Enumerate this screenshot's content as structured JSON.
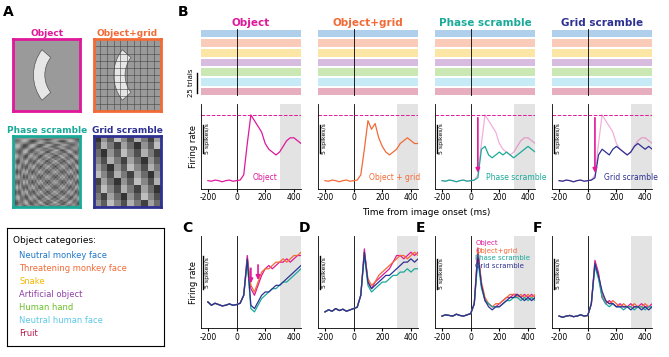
{
  "panel_labels": [
    "A",
    "B",
    "C",
    "D",
    "E",
    "F"
  ],
  "images": [
    {
      "title": "Object",
      "color": "#e0189a"
    },
    {
      "title": "Object+grid",
      "color": "#f26a36"
    },
    {
      "title": "Phase scramble",
      "color": "#1aaa9a"
    },
    {
      "title": "Grid scramble",
      "color": "#2e3192"
    }
  ],
  "legend_box": {
    "title": "Object categories:",
    "items": [
      {
        "name": "Neutral monkey face",
        "color": "#1f77c8"
      },
      {
        "name": "Threatening monkey face",
        "color": "#f26a36"
      },
      {
        "name": "Snake",
        "color": "#f5b800"
      },
      {
        "name": "Artificial object",
        "color": "#8e3fa8"
      },
      {
        "name": "Human hand",
        "color": "#6bbf2a"
      },
      {
        "name": "Neutral human face",
        "color": "#5ec8e8"
      },
      {
        "name": "Fruit",
        "color": "#b8184a"
      }
    ]
  },
  "raster_scale": {
    "label": "25 trials"
  },
  "xlabel": "Time from image onset (ms)",
  "shaded_window": [
    300,
    450
  ],
  "chart_data": [
    {
      "type": "line",
      "title": "Object",
      "ylabel": "Firing rate",
      "x": [
        -200,
        -175,
        -150,
        -125,
        -100,
        -75,
        -50,
        -25,
        0,
        25,
        50,
        75,
        100,
        125,
        150,
        175,
        200,
        225,
        250,
        275,
        300,
        325,
        350,
        375,
        400,
        425,
        450
      ],
      "xlim": [
        -250,
        450
      ],
      "xticks": [
        -200,
        0,
        200,
        400
      ],
      "ylim": [
        0,
        15
      ],
      "yticks": [],
      "tick_labels": "x",
      "scale_bar": {
        "value": 5,
        "label": "5 spikes/s"
      },
      "peak_line": 13,
      "series": [
        {
          "name": "Object",
          "color": "#e0189a",
          "values": [
            1.5,
            1.4,
            1.6,
            1.5,
            1.3,
            1.5,
            1.6,
            1.4,
            1.5,
            1.6,
            2.5,
            8,
            13,
            12,
            11,
            10,
            8,
            7,
            6.5,
            6,
            6.5,
            7.5,
            8.5,
            9,
            9,
            8.5,
            8
          ]
        }
      ]
    },
    {
      "type": "line",
      "title": "Object+grid",
      "x": [
        -200,
        -175,
        -150,
        -125,
        -100,
        -75,
        -50,
        -25,
        0,
        25,
        50,
        75,
        100,
        125,
        150,
        175,
        200,
        225,
        250,
        275,
        300,
        325,
        350,
        375,
        400,
        425,
        450
      ],
      "xlim": [
        -250,
        450
      ],
      "xticks": [
        -200,
        0,
        200,
        400
      ],
      "ylim": [
        0,
        15
      ],
      "yticks": [],
      "tick_labels": "x",
      "scale_bar": {
        "value": 5,
        "label": "5 spikes/s"
      },
      "peak_line": 13,
      "series": [
        {
          "name": "Object + grid",
          "color": "#f26a36",
          "values": [
            1.5,
            1.4,
            1.6,
            1.5,
            1.3,
            1.5,
            1.6,
            1.4,
            1.5,
            1.6,
            2.5,
            7,
            12,
            10.5,
            11.5,
            9,
            7.5,
            6.5,
            6,
            6.5,
            7,
            8,
            8.5,
            9,
            8.5,
            8,
            8
          ]
        }
      ]
    },
    {
      "type": "line",
      "title": "Phase scramble",
      "x": [
        -200,
        -175,
        -150,
        -125,
        -100,
        -75,
        -50,
        -25,
        0,
        25,
        50,
        75,
        100,
        125,
        150,
        175,
        200,
        225,
        250,
        275,
        300,
        325,
        350,
        375,
        400,
        425,
        450
      ],
      "xlim": [
        -250,
        450
      ],
      "xticks": [
        -200,
        0,
        200,
        400
      ],
      "ylim": [
        0,
        15
      ],
      "yticks": [],
      "tick_labels": "x",
      "scale_bar": {
        "value": 5,
        "label": "5 spikes/s"
      },
      "peak_line": 13,
      "arrow_x": [
        50
      ],
      "reference": {
        "color": "#e0189a",
        "values": [
          1.5,
          1.4,
          1.6,
          1.5,
          1.3,
          1.5,
          1.6,
          1.4,
          1.5,
          1.6,
          2.5,
          8,
          13,
          12,
          11,
          10,
          8,
          7,
          6.5,
          6,
          6.5,
          7.5,
          8.5,
          9,
          9,
          8.5,
          8
        ]
      },
      "series": [
        {
          "name": "Phase scramble",
          "color": "#1aaa9a",
          "values": [
            1.5,
            1.4,
            1.6,
            1.5,
            1.3,
            1.5,
            1.6,
            1.4,
            1.5,
            1.6,
            2,
            7,
            7.5,
            6,
            5.5,
            6,
            6.5,
            6,
            6.5,
            6,
            5.5,
            6,
            6.5,
            7,
            7.5,
            7,
            6.5
          ]
        }
      ]
    },
    {
      "type": "line",
      "title": "Grid scramble",
      "x": [
        -200,
        -175,
        -150,
        -125,
        -100,
        -75,
        -50,
        -25,
        0,
        25,
        50,
        75,
        100,
        125,
        150,
        175,
        200,
        225,
        250,
        275,
        300,
        325,
        350,
        375,
        400,
        425,
        450
      ],
      "xlim": [
        -250,
        450
      ],
      "xticks": [
        -200,
        0,
        200,
        400
      ],
      "ylim": [
        0,
        15
      ],
      "yticks": [],
      "tick_labels": "x",
      "scale_bar": {
        "value": 5,
        "label": "5 spikes/s"
      },
      "peak_line": 13,
      "arrow_x": [
        50
      ],
      "reference": {
        "color": "#e0189a",
        "values": [
          1.5,
          1.4,
          1.6,
          1.5,
          1.3,
          1.5,
          1.6,
          1.4,
          1.5,
          1.6,
          2.5,
          8,
          13,
          12,
          11,
          10,
          8,
          7,
          6.5,
          6,
          6.5,
          7.5,
          8.5,
          9,
          9,
          8.5,
          8
        ]
      },
      "series": [
        {
          "name": "Grid scramble",
          "color": "#2e3192",
          "values": [
            1.5,
            1.4,
            1.6,
            1.5,
            1.3,
            1.5,
            1.6,
            1.4,
            1.5,
            1.6,
            2,
            6,
            7,
            6.5,
            6,
            7,
            7.5,
            7,
            6.5,
            6,
            6.5,
            7.5,
            8,
            7.5,
            7,
            7.5,
            7
          ]
        }
      ]
    },
    {
      "type": "line",
      "ylabel": "Firing rate",
      "x": [
        -200,
        -175,
        -150,
        -125,
        -100,
        -75,
        -50,
        -25,
        0,
        25,
        50,
        75,
        100,
        125,
        150,
        175,
        200,
        225,
        250,
        275,
        300,
        325,
        350,
        375,
        400,
        425,
        450
      ],
      "xlim": [
        -250,
        450
      ],
      "xticks": [
        -200,
        0,
        200,
        400
      ],
      "ylim": [
        0,
        14
      ],
      "yticks": [],
      "tick_labels": "x",
      "scale_bar": {
        "value": 5,
        "label": "5 spikes/s"
      },
      "arrow_x": [
        100,
        150
      ],
      "series": [
        {
          "color": "#e0189a",
          "values": [
            4,
            3.5,
            3.8,
            3.6,
            3.4,
            3.5,
            3.7,
            3.5,
            3.6,
            3.8,
            5,
            11,
            6,
            5,
            6.5,
            8,
            9,
            9.5,
            9,
            9.5,
            10,
            10,
            10.5,
            10,
            10.5,
            11,
            11
          ]
        },
        {
          "color": "#f26a36",
          "values": [
            4,
            3.5,
            3.8,
            3.6,
            3.4,
            3.5,
            3.7,
            3.5,
            3.6,
            3.8,
            5,
            10.5,
            6.5,
            5.5,
            7,
            8.5,
            9,
            9,
            9.5,
            10,
            10,
            10.5,
            10,
            10.5,
            11,
            11,
            11.5
          ]
        },
        {
          "color": "#1aaa9a",
          "values": [
            4,
            3.5,
            3.8,
            3.6,
            3.4,
            3.5,
            3.7,
            3.5,
            3.6,
            3.8,
            5,
            10,
            3,
            2.5,
            3.5,
            4.5,
            5,
            5.5,
            6,
            6,
            6.5,
            7,
            7,
            7.5,
            8,
            8.5,
            9
          ]
        },
        {
          "color": "#2e3192",
          "values": [
            4,
            3.5,
            3.8,
            3.6,
            3.4,
            3.5,
            3.7,
            3.5,
            3.6,
            3.8,
            5,
            10.5,
            3.5,
            3,
            4,
            5,
            5.5,
            5.5,
            6,
            6.5,
            6.5,
            7,
            7.5,
            8,
            8.5,
            9,
            9.5
          ]
        }
      ]
    },
    {
      "type": "line",
      "x": [
        -200,
        -175,
        -150,
        -125,
        -100,
        -75,
        -50,
        -25,
        0,
        25,
        50,
        75,
        100,
        125,
        150,
        175,
        200,
        225,
        250,
        275,
        300,
        325,
        350,
        375,
        400,
        425,
        450
      ],
      "xlim": [
        -250,
        450
      ],
      "xticks": [
        -200,
        0,
        200,
        400
      ],
      "ylim": [
        0,
        14
      ],
      "yticks": [],
      "tick_labels": "x",
      "scale_bar": {
        "value": 5,
        "label": "5 spikes/s"
      },
      "series": [
        {
          "color": "#e0189a",
          "values": [
            2.5,
            2.8,
            2.6,
            3,
            2.7,
            2.9,
            2.6,
            2.8,
            3,
            3.2,
            5,
            12,
            7,
            6,
            7,
            7.5,
            8,
            8.5,
            9,
            10,
            11,
            11,
            10.5,
            11,
            11.5,
            11,
            11.5
          ]
        },
        {
          "color": "#f26a36",
          "values": [
            2.5,
            2.8,
            2.6,
            3,
            2.7,
            2.9,
            2.6,
            2.8,
            3,
            3.2,
            5,
            11.5,
            7.5,
            6.5,
            7,
            8,
            8.5,
            9,
            9.5,
            10,
            10.5,
            11,
            11,
            10.5,
            11,
            11.5,
            11
          ]
        },
        {
          "color": "#1aaa9a",
          "values": [
            2.5,
            2.8,
            2.6,
            3,
            2.7,
            2.9,
            2.6,
            2.8,
            3,
            3.2,
            5,
            11,
            6.5,
            5.5,
            6,
            6.5,
            7,
            7,
            7.5,
            8,
            8,
            8.5,
            8.5,
            9,
            8.5,
            9,
            9
          ]
        },
        {
          "color": "#2e3192",
          "values": [
            2.5,
            2.8,
            2.6,
            3,
            2.7,
            2.9,
            2.6,
            2.8,
            3,
            3.2,
            5,
            11.5,
            7,
            6,
            6.5,
            7,
            7.5,
            8,
            8,
            8.5,
            9,
            9.5,
            10,
            10,
            10.5,
            10,
            10.5
          ]
        }
      ]
    },
    {
      "type": "line",
      "legend": "upper right",
      "x": [
        -200,
        -175,
        -150,
        -125,
        -100,
        -75,
        -50,
        -25,
        0,
        25,
        50,
        75,
        100,
        125,
        150,
        175,
        200,
        225,
        250,
        275,
        300,
        325,
        350,
        375,
        400,
        425,
        450
      ],
      "xlim": [
        -250,
        450
      ],
      "xticks": [
        -200,
        0,
        200,
        400
      ],
      "ylim": [
        0,
        15
      ],
      "yticks": [],
      "tick_labels": "x",
      "scale_bar": {
        "value": 5,
        "label": "5 spikes/s"
      },
      "series": [
        {
          "name": "Object",
          "color": "#e0189a",
          "values": [
            2,
            2.2,
            2.1,
            2,
            2.3,
            2.1,
            2,
            2.2,
            2.4,
            4,
            13,
            7,
            4.5,
            4,
            3.5,
            3.5,
            4,
            4.5,
            5,
            5,
            5.5,
            5.5,
            5,
            5.5,
            5,
            5.5,
            5
          ]
        },
        {
          "name": "Object+grid",
          "color": "#f26a36",
          "values": [
            2,
            2.2,
            2.1,
            2,
            2.3,
            2.1,
            2,
            2.2,
            2.4,
            4,
            12.5,
            7.5,
            5,
            4,
            3.5,
            4,
            4,
            4.5,
            5,
            5.5,
            5.5,
            5,
            5.5,
            5,
            5.5,
            5,
            5.5
          ]
        },
        {
          "name": "Phase scramble",
          "color": "#1aaa9a",
          "values": [
            2,
            2.2,
            2.1,
            2,
            2.3,
            2.1,
            2,
            2.2,
            2.4,
            4,
            11,
            6.5,
            4.5,
            4,
            3.5,
            3.5,
            3.5,
            4,
            4.5,
            4.5,
            5,
            5,
            4.5,
            5,
            4.5,
            5,
            4.5
          ]
        },
        {
          "name": "Grid scramble",
          "color": "#2e3192",
          "values": [
            2,
            2.2,
            2.1,
            2,
            2.3,
            2.1,
            2,
            2.2,
            2.4,
            4,
            12,
            7,
            4.5,
            3.5,
            3,
            3.5,
            3.5,
            4,
            4.5,
            5,
            5,
            5.5,
            5,
            4.5,
            5,
            4.5,
            5
          ]
        }
      ]
    },
    {
      "type": "line",
      "x": [
        -200,
        -175,
        -150,
        -125,
        -100,
        -75,
        -50,
        -25,
        0,
        25,
        50,
        75,
        100,
        125,
        150,
        175,
        200,
        225,
        250,
        275,
        300,
        325,
        350,
        375,
        400,
        425,
        450
      ],
      "xlim": [
        -250,
        450
      ],
      "xticks": [
        -200,
        0,
        200,
        400
      ],
      "ylim": [
        0,
        15
      ],
      "yticks": [],
      "tick_labels": "x",
      "scale_bar": {
        "value": 5,
        "label": "5 spikes/s"
      },
      "series": [
        {
          "color": "#e0189a",
          "values": [
            2,
            1.8,
            2,
            2.1,
            1.9,
            2,
            2.2,
            2,
            2.1,
            4,
            11,
            9,
            5,
            4,
            4.5,
            4,
            3.5,
            4,
            3.5,
            3.5,
            4,
            3.5,
            3.5,
            4,
            3.5,
            3.5,
            4
          ]
        },
        {
          "color": "#f26a36",
          "values": [
            2,
            1.8,
            2,
            2.1,
            1.9,
            2,
            2.2,
            2,
            2.1,
            4,
            10.5,
            8.5,
            5.5,
            4.5,
            4,
            4.5,
            4,
            3.5,
            4,
            3.5,
            3.5,
            4,
            3.5,
            3.5,
            4,
            3.5,
            3.5
          ]
        },
        {
          "color": "#1aaa9a",
          "values": [
            2,
            1.8,
            2,
            2.1,
            1.9,
            2,
            2.2,
            2,
            2.1,
            4,
            10,
            8,
            5,
            4,
            3.5,
            4,
            3.5,
            3.5,
            3,
            3.5,
            3.5,
            3,
            3.5,
            3.5,
            3,
            3.5,
            3.5
          ]
        },
        {
          "color": "#2e3192",
          "values": [
            2,
            1.8,
            2,
            2.1,
            1.9,
            2,
            2.2,
            2,
            2.1,
            4,
            10.5,
            8.5,
            6,
            4.5,
            4,
            4,
            3.5,
            3.5,
            3.5,
            3.5,
            3,
            3.5,
            3.5,
            3,
            3.5,
            3,
            3.5
          ]
        }
      ]
    }
  ]
}
